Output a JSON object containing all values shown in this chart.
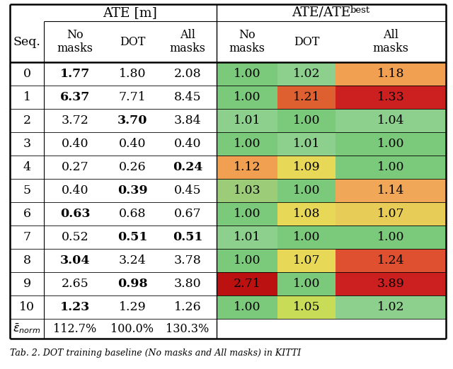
{
  "sequences": [
    "0",
    "1",
    "2",
    "3",
    "4",
    "5",
    "6",
    "7",
    "8",
    "9",
    "10"
  ],
  "ate_no_masks": [
    "1.77",
    "6.37",
    "3.72",
    "0.40",
    "0.27",
    "0.40",
    "0.63",
    "0.52",
    "3.04",
    "2.65",
    "1.23"
  ],
  "ate_dot": [
    "1.80",
    "7.71",
    "3.70",
    "0.40",
    "0.26",
    "0.39",
    "0.68",
    "0.51",
    "3.24",
    "0.98",
    "1.29"
  ],
  "ate_all_masks": [
    "2.08",
    "8.45",
    "3.84",
    "0.40",
    "0.24",
    "0.45",
    "0.67",
    "0.51",
    "3.78",
    "3.80",
    "1.26"
  ],
  "ratio_no_masks": [
    "1.00",
    "1.00",
    "1.01",
    "1.00",
    "1.12",
    "1.03",
    "1.00",
    "1.01",
    "1.00",
    "2.71",
    "1.00"
  ],
  "ratio_dot": [
    "1.02",
    "1.21",
    "1.00",
    "1.01",
    "1.09",
    "1.00",
    "1.08",
    "1.00",
    "1.07",
    "1.00",
    "1.05"
  ],
  "ratio_all_masks": [
    "1.18",
    "1.33",
    "1.04",
    "1.00",
    "1.00",
    "1.14",
    "1.07",
    "1.00",
    "1.24",
    "3.89",
    "1.02"
  ],
  "bold_ate_no_masks": [
    true,
    true,
    false,
    false,
    false,
    false,
    true,
    false,
    true,
    false,
    true
  ],
  "bold_ate_dot": [
    false,
    false,
    true,
    false,
    false,
    true,
    false,
    true,
    false,
    true,
    false
  ],
  "bold_ate_all_masks": [
    false,
    false,
    false,
    false,
    true,
    false,
    false,
    true,
    false,
    false,
    false
  ],
  "norm_row": [
    "112.7%",
    "100.0%",
    "130.3%"
  ],
  "bg_color": "#ffffff",
  "cell_colors_ratio_no_masks": [
    "#7bc97b",
    "#7bc97b",
    "#8dd08d",
    "#7bc97b",
    "#f0a050",
    "#9ccc78",
    "#7bc97b",
    "#8dd08d",
    "#7bc97b",
    "#bb1111",
    "#7bc97b"
  ],
  "cell_colors_ratio_dot": [
    "#8dd08d",
    "#de6030",
    "#7bc97b",
    "#8dd08d",
    "#e8d858",
    "#7bc97b",
    "#e8d858",
    "#7bc97b",
    "#e8d858",
    "#7bc97b",
    "#c8dc58"
  ],
  "cell_colors_ratio_all_masks": [
    "#f0a050",
    "#cc2020",
    "#8dd08d",
    "#7bc97b",
    "#7bc97b",
    "#f0a858",
    "#e8cc58",
    "#7bc97b",
    "#de5030",
    "#cc2020",
    "#8dd08d"
  ],
  "caption": "Tab. 2. DOT training baseline (No masks and All masks) in KITTI"
}
